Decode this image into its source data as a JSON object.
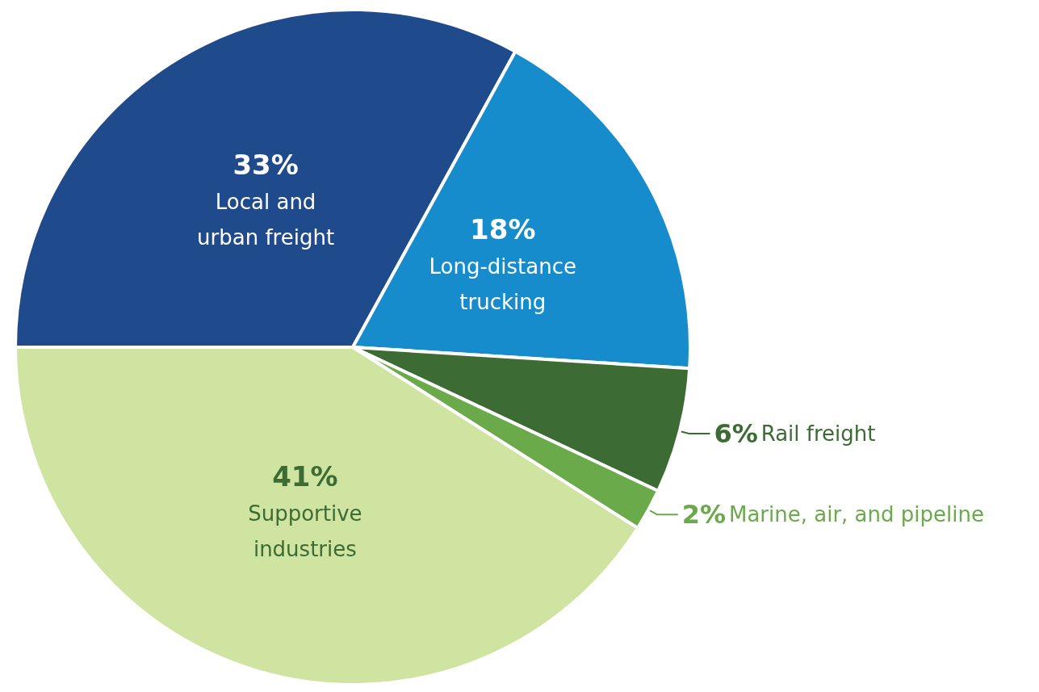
{
  "chart_data": {
    "type": "pie",
    "categories": [
      "Local and urban freight",
      "Long-distance trucking",
      "Rail freight",
      "Marine, air, and pipeline",
      "Supportive industries"
    ],
    "values": [
      33,
      18,
      6,
      2,
      41
    ],
    "colors": [
      "#1f4a8c",
      "#168ccc",
      "#3d6b34",
      "#6aaa4a",
      "#d0e4a2"
    ],
    "value_labels": [
      "33%",
      "18%",
      "6%",
      "2%",
      "41%"
    ],
    "legend": false
  }
}
